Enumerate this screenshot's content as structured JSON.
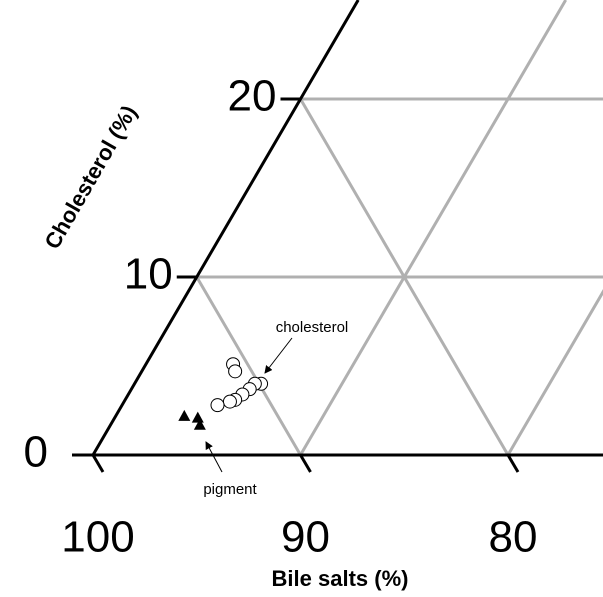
{
  "chart_data": {
    "type": "ternary",
    "xlabel": "Bile salts (%)",
    "ylabel": "Cholesterol (%)",
    "xticks": [
      100,
      90,
      80
    ],
    "yticks": [
      0,
      10,
      20
    ],
    "grid": true,
    "series": [
      {
        "name": "cholesterol",
        "marker": "open-circle",
        "color": "#000000",
        "x": [
          90.7,
          90.8,
          89.9,
          90.2,
          90.6,
          91.1,
          91.6,
          91.9,
          92.6
        ],
        "y": [
          5.1,
          4.7,
          4.0,
          4.0,
          3.7,
          3.4,
          3.1,
          3.0,
          2.8
        ]
      },
      {
        "name": "pigment",
        "marker": "triangle",
        "color": "#000000",
        "x": [
          94.5,
          93.9,
          94.0
        ],
        "y": [
          2.2,
          2.1,
          1.7
        ]
      }
    ]
  }
}
